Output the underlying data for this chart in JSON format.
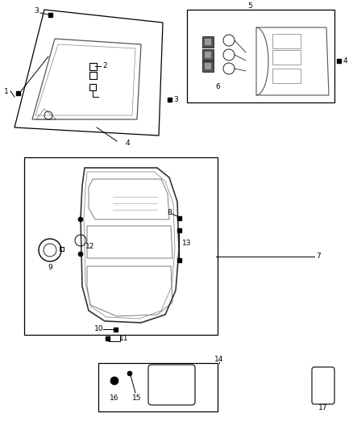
{
  "bg": "#ffffff",
  "fw": 4.38,
  "fh": 5.33,
  "dpi": 100,
  "fs": 6.5
}
